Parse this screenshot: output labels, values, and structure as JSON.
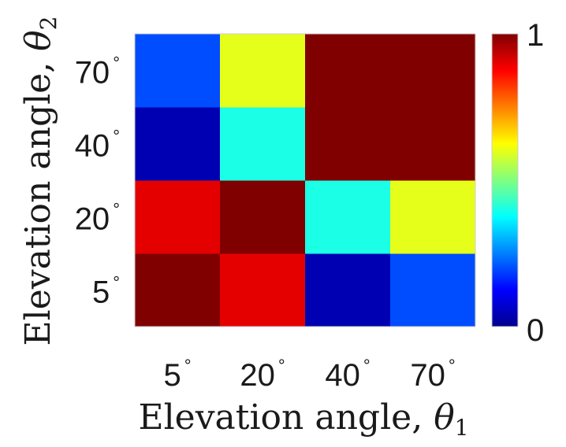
{
  "chart_data": {
    "type": "heatmap",
    "x_categories": [
      "5",
      "20",
      "40",
      "70"
    ],
    "y_categories": [
      "5",
      "20",
      "40",
      "70"
    ],
    "tick_suffix": "°",
    "xlabel": {
      "text": "Elevation angle, ",
      "var": "θ",
      "sub": "1"
    },
    "ylabel": {
      "text": "Elevation angle, ",
      "var": "θ",
      "sub": "2"
    },
    "values": [
      [
        1.0,
        0.9,
        0.05,
        0.2
      ],
      [
        0.9,
        1.0,
        0.4,
        0.6
      ],
      [
        0.05,
        0.4,
        1.0,
        1.0
      ],
      [
        0.2,
        0.6,
        1.0,
        1.0
      ]
    ],
    "value_note": "values[y_index][x_index], y index 0 = 5° (bottom row)",
    "colormap": "jet",
    "clim": [
      0,
      1
    ],
    "colorbar": {
      "ticks": [
        "0",
        "1"
      ],
      "position": "right"
    },
    "grid": false
  }
}
